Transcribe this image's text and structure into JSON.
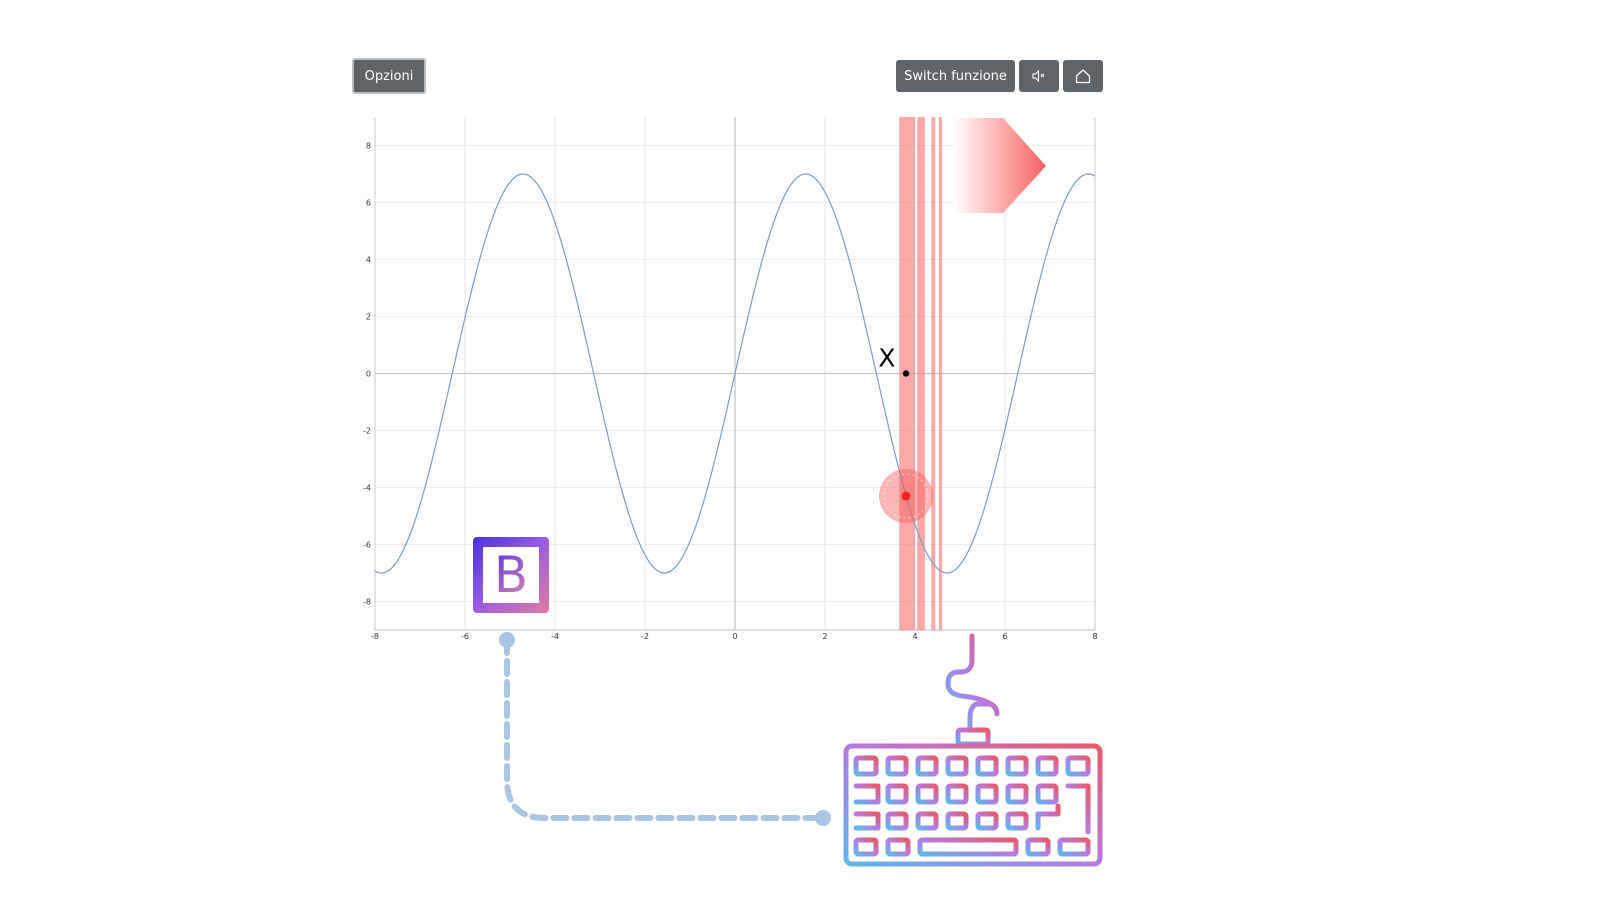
{
  "toolbar": {
    "options_label": "Opzioni",
    "switch_label": "Switch funzione",
    "mute_icon": "speaker-muted-icon",
    "home_icon": "home-icon"
  },
  "chart_data": {
    "type": "line",
    "xlim": [
      -8,
      8
    ],
    "ylim": [
      -9,
      9
    ],
    "x_ticks": [
      -8,
      -6,
      -4,
      -2,
      0,
      2,
      4,
      6,
      8
    ],
    "y_ticks": [
      8,
      6,
      4,
      2,
      0,
      -2,
      -4,
      -6,
      -8
    ],
    "x_tick_labels": [
      "-8",
      "-6",
      "-4",
      "-2",
      "0",
      "2",
      "4",
      "6",
      "8"
    ],
    "y_tick_labels": [
      "8",
      "6",
      "4",
      "2",
      "0",
      "-2",
      "-4",
      "-6",
      "-8"
    ],
    "grid": true,
    "series": [
      {
        "function": "7*sin(x)",
        "amplitude": 7,
        "frequency": 1,
        "color": "#7a9cc0"
      }
    ],
    "markers": {
      "cursor_point": {
        "x": 3.8,
        "y": 0
      },
      "x_marker_label": "X",
      "target_point": {
        "x": 3.8,
        "y": -4.3
      }
    },
    "highlight_bands_x": [
      {
        "from": 3.65,
        "to": 4.0
      },
      {
        "from": 4.05,
        "to": 4.22
      },
      {
        "from": 4.36,
        "to": 4.45
      },
      {
        "from": 4.53,
        "to": 4.6
      }
    ],
    "colors": {
      "highlight": "#fa7b7b",
      "target": "#ff2020"
    }
  },
  "hints": {
    "key_letter": "B",
    "key_icon": "keyboard-b-key-icon",
    "keyboard_icon": "keyboard-icon",
    "arrow_icon": "direction-arrow-icon"
  }
}
